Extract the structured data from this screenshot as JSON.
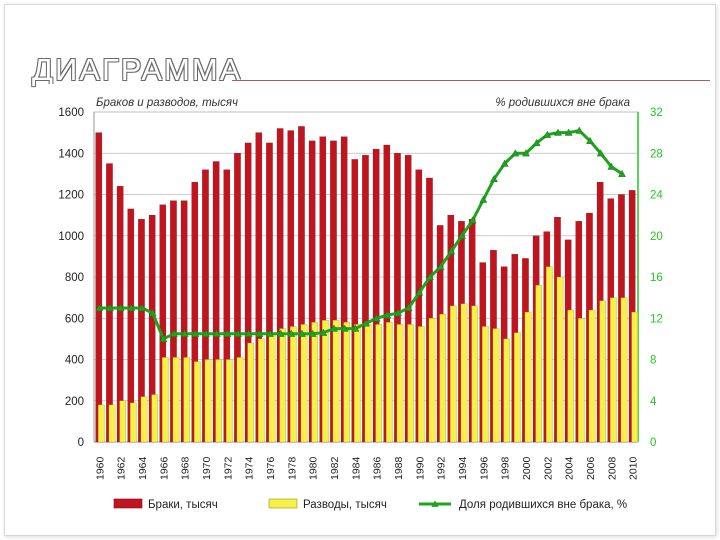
{
  "slide": {
    "title": "ДИАГРАММА"
  },
  "colors": {
    "marriages": "#c0151f",
    "divorces": "#f7f04a",
    "out_of_wedlock": "#1fa31f",
    "axis_right": "#22c822",
    "grid": "#bdbdbd"
  },
  "chart_data": {
    "type": "bar",
    "title": "",
    "left_axis_title": "Браков и разводов, тысяч",
    "right_axis_title": "% родившихся вне брака",
    "categories": [
      "1960",
      "1961",
      "1962",
      "1963",
      "1964",
      "1965",
      "1966",
      "1967",
      "1968",
      "1969",
      "1970",
      "1971",
      "1972",
      "1973",
      "1974",
      "1975",
      "1976",
      "1977",
      "1978",
      "1979",
      "1980",
      "1981",
      "1982",
      "1983",
      "1984",
      "1985",
      "1986",
      "1987",
      "1988",
      "1989",
      "1990",
      "1991",
      "1992",
      "1993",
      "1994",
      "1995",
      "1996",
      "1997",
      "1998",
      "1999",
      "2000",
      "2001",
      "2002",
      "2003",
      "2004",
      "2005",
      "2006",
      "2007",
      "2008",
      "2009",
      "2010"
    ],
    "x_tick_labels": [
      "1960",
      "1962",
      "1964",
      "1966",
      "1968",
      "1970",
      "1972",
      "1974",
      "1976",
      "1978",
      "1980",
      "1982",
      "1984",
      "1986",
      "1988",
      "1990",
      "1992",
      "1994",
      "1996",
      "1998",
      "2000",
      "2002",
      "2004",
      "2006",
      "2008",
      "2010"
    ],
    "ylim_left": [
      0,
      1600
    ],
    "yticks_left": [
      0,
      200,
      400,
      600,
      800,
      1000,
      1200,
      1400,
      1600
    ],
    "ylim_right": [
      0,
      32
    ],
    "yticks_right": [
      0,
      4,
      8,
      12,
      16,
      20,
      24,
      28,
      32
    ],
    "grid": true,
    "legend_position": "bottom",
    "series": [
      {
        "name": "Браки, тысяч",
        "type": "bar",
        "axis": "left",
        "values": [
          1500,
          1350,
          1240,
          1130,
          1080,
          1100,
          1150,
          1170,
          1170,
          1260,
          1320,
          1360,
          1320,
          1400,
          1450,
          1500,
          1450,
          1520,
          1510,
          1530,
          1460,
          1480,
          1460,
          1480,
          1370,
          1390,
          1420,
          1440,
          1400,
          1390,
          1320,
          1280,
          1050,
          1100,
          1070,
          1080,
          870,
          930,
          850,
          910,
          890,
          1000,
          1020,
          1090,
          980,
          1070,
          1110,
          1260,
          1180,
          1200,
          1220
        ]
      },
      {
        "name": "Разводы, тысяч",
        "type": "bar",
        "axis": "left",
        "values": [
          180,
          180,
          200,
          190,
          220,
          230,
          410,
          410,
          410,
          390,
          400,
          400,
          400,
          410,
          480,
          500,
          520,
          550,
          560,
          570,
          580,
          590,
          590,
          580,
          570,
          570,
          570,
          580,
          570,
          570,
          560,
          600,
          620,
          660,
          670,
          660,
          560,
          550,
          500,
          530,
          630,
          760,
          850,
          800,
          640,
          600,
          640,
          685,
          700,
          700,
          630
        ]
      },
      {
        "name": "Доля родившихся вне брака, %",
        "type": "line",
        "axis": "right",
        "values": [
          13.0,
          13.0,
          13.0,
          13.0,
          13.0,
          12.5,
          10.0,
          10.5,
          10.5,
          10.5,
          10.5,
          10.5,
          10.5,
          10.5,
          10.5,
          10.5,
          10.5,
          10.5,
          10.5,
          10.5,
          10.5,
          10.6,
          11.0,
          11.0,
          11.0,
          11.5,
          12.0,
          12.3,
          12.5,
          13.0,
          14.5,
          16.0,
          17.0,
          18.5,
          20.0,
          21.5,
          23.5,
          25.5,
          27.0,
          28.0,
          28.0,
          29.0,
          29.8,
          30.0,
          30.0,
          30.2,
          29.2,
          28.0,
          26.7,
          26.0,
          null
        ]
      }
    ]
  }
}
